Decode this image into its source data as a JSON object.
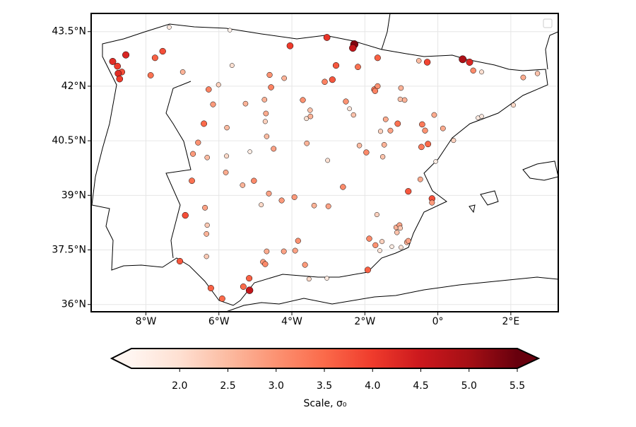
{
  "chart_data": {
    "type": "scatter",
    "xlim": [
      -9.5,
      3.3
    ],
    "ylim": [
      35.8,
      44.0
    ],
    "xticks": [
      {
        "value": -8,
        "label": "8°W"
      },
      {
        "value": -6,
        "label": "6°W"
      },
      {
        "value": -4,
        "label": "4°W"
      },
      {
        "value": -2,
        "label": "2°W"
      },
      {
        "value": 0,
        "label": "0°"
      },
      {
        "value": 2,
        "label": "2°E"
      }
    ],
    "yticks": [
      {
        "value": 36,
        "label": "36°N"
      },
      {
        "value": 37.5,
        "label": "37.5°N"
      },
      {
        "value": 39,
        "label": "39°N"
      },
      {
        "value": 40.5,
        "label": "40.5°N"
      },
      {
        "value": 42,
        "label": "42°N"
      },
      {
        "value": 43.5,
        "label": "43.5°N"
      }
    ],
    "grid": true,
    "colormap": [
      "#fff5f0",
      "#fee0d2",
      "#fcbba1",
      "#fc9272",
      "#fb6a4a",
      "#ef3b2c",
      "#cb181d",
      "#a50f15",
      "#67000d"
    ],
    "clim": [
      1.5,
      5.5
    ],
    "colorbar_ticks": [
      {
        "value": 2,
        "label": "2.0"
      },
      2.5,
      {
        "value": 3,
        "label": "3.0"
      },
      3.5,
      {
        "value": 4,
        "label": "4.0"
      },
      4.5,
      {
        "value": 5,
        "label": "5.0"
      },
      5.5
    ],
    "colorbar_label": "Scale, σ₀",
    "x": [
      -7.36,
      -5.7,
      -8.55,
      -8.91,
      -8.78,
      -8.66,
      -8.76,
      -8.72,
      -7.75,
      -7.54,
      -7.87,
      -6.99,
      -5.64,
      -4.05,
      -3.04,
      -2.29,
      -2.33,
      -2.79,
      -2.19,
      -1.65,
      -0.52,
      -0.29,
      0.68,
      0.87,
      0.97,
      1.2,
      2.34,
      2.73,
      2.07,
      -4.61,
      -4.21,
      -4.57,
      -3.1,
      -2.89,
      -6.28,
      -6.01,
      -6.16,
      -5.27,
      -4.75,
      -4.71,
      -4.73,
      -3.7,
      -3.5,
      -3.6,
      -3.49,
      -2.52,
      -2.42,
      -2.31,
      -1.74,
      -1.65,
      -1.72,
      -1.01,
      -1.03,
      -0.91,
      -1.43,
      -1.57,
      -1.3,
      -1.1,
      -0.1,
      -0.43,
      -0.35,
      0.14,
      1.1,
      1.2,
      0.43,
      -0.27,
      -0.45,
      -0.06,
      -0.48,
      -0.81,
      -0.16,
      -0.16,
      -6.41,
      -5.78,
      -6.57,
      -6.71,
      -6.32,
      -5.79,
      -5.15,
      -4.69,
      -4.5,
      -3.59,
      -3.02,
      -2.15,
      -1.96,
      -1.51,
      -1.47,
      -5.81,
      -6.74,
      -5.35,
      -5.04,
      -4.63,
      -3.93,
      -4.28,
      -4.84,
      -3.39,
      -3.0,
      -2.6,
      -6.92,
      -6.38,
      -6.32,
      -6.34,
      -6.34,
      -7.07,
      -4.69,
      -4.22,
      -3.91,
      -3.83,
      -4.79,
      -4.73,
      -3.64,
      -3.53,
      -3.04,
      -5.17,
      -5.33,
      -5.16,
      -6.22,
      -5.91,
      -1.92,
      -1.88,
      -1.71,
      -1.53,
      -1.59,
      -1.67,
      -1.14,
      -1.05,
      -1.12,
      -1.03,
      -1.01,
      -0.85,
      -1.26,
      -0.81
    ],
    "y": [
      43.62,
      43.54,
      42.86,
      42.68,
      42.55,
      42.39,
      42.35,
      42.2,
      42.78,
      42.96,
      42.3,
      42.39,
      42.57,
      43.11,
      43.34,
      43.15,
      43.05,
      42.57,
      42.53,
      42.78,
      42.7,
      42.66,
      42.74,
      42.66,
      42.43,
      42.39,
      42.24,
      42.35,
      41.48,
      42.31,
      42.22,
      41.97,
      42.12,
      42.18,
      41.91,
      42.04,
      41.5,
      41.52,
      41.63,
      41.25,
      41.03,
      41.62,
      41.34,
      41.11,
      41.17,
      41.58,
      41.38,
      41.21,
      41.91,
      42.0,
      41.87,
      41.95,
      41.64,
      41.62,
      41.09,
      40.76,
      40.78,
      40.97,
      41.21,
      40.95,
      40.78,
      40.84,
      41.13,
      41.17,
      40.51,
      40.41,
      40.33,
      39.93,
      39.44,
      39.11,
      38.91,
      38.8,
      40.97,
      40.86,
      40.45,
      40.14,
      40.04,
      40.08,
      40.2,
      40.62,
      40.28,
      40.43,
      39.96,
      40.37,
      40.18,
      40.06,
      40.39,
      39.63,
      39.4,
      39.28,
      39.4,
      39.05,
      38.95,
      38.86,
      38.74,
      38.72,
      38.7,
      39.23,
      38.45,
      38.66,
      38.18,
      37.94,
      37.32,
      37.19,
      37.46,
      37.46,
      37.48,
      37.75,
      37.17,
      37.11,
      37.09,
      36.7,
      36.72,
      36.72,
      36.49,
      36.39,
      36.45,
      36.16,
      36.95,
      37.81,
      37.63,
      37.73,
      37.48,
      38.47,
      38.12,
      38.18,
      37.98,
      38.1,
      37.57,
      37.71,
      37.59,
      37.75
    ],
    "values": [
      1.8,
      1.6,
      4.3,
      4.2,
      4.0,
      3.8,
      4.2,
      4.0,
      3.6,
      3.8,
      3.4,
      2.6,
      2.0,
      4.0,
      4.1,
      5.3,
      4.6,
      3.7,
      3.4,
      3.6,
      2.5,
      3.9,
      4.9,
      4.3,
      3.1,
      2.0,
      2.7,
      2.4,
      2.1,
      3.0,
      2.6,
      3.2,
      3.2,
      3.7,
      3.2,
      2.2,
      2.9,
      2.6,
      2.6,
      2.7,
      2.2,
      3.0,
      2.4,
      2.0,
      2.6,
      3.0,
      1.9,
      2.4,
      3.3,
      3.0,
      3.2,
      2.6,
      2.4,
      2.6,
      2.7,
      2.2,
      2.8,
      3.4,
      2.7,
      3.3,
      3.0,
      2.7,
      1.8,
      1.8,
      2.2,
      3.5,
      3.3,
      1.7,
      2.7,
      3.7,
      3.8,
      2.9,
      3.5,
      2.5,
      3.0,
      2.9,
      2.5,
      2.1,
      1.7,
      2.5,
      2.8,
      2.6,
      2.0,
      2.5,
      3.1,
      2.4,
      2.6,
      2.7,
      3.4,
      2.6,
      3.1,
      2.8,
      2.9,
      2.9,
      2.1,
      2.6,
      2.8,
      3.1,
      3.8,
      2.8,
      2.3,
      2.6,
      2.3,
      3.7,
      2.7,
      2.8,
      2.8,
      3.0,
      2.9,
      3.1,
      2.9,
      2.1,
      1.8,
      3.6,
      3.5,
      4.6,
      3.6,
      3.5,
      3.6,
      3.1,
      3.0,
      2.2,
      1.9,
      2.2,
      2.6,
      2.8,
      2.4,
      2.3,
      1.9,
      2.6,
      1.7,
      2.8
    ]
  }
}
